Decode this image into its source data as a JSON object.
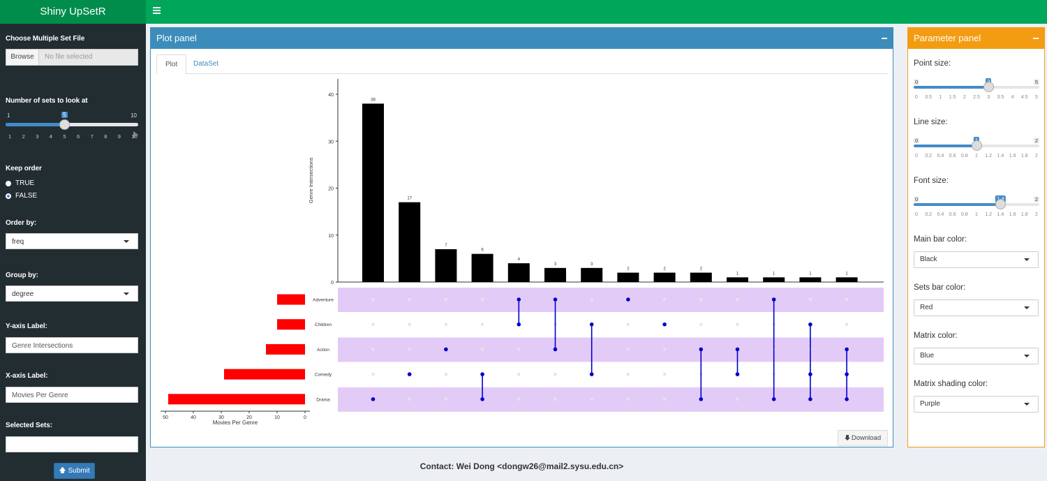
{
  "app": {
    "title": "Shiny UpSetR"
  },
  "sidebar": {
    "file_label": "Choose Multiple Set File",
    "browse_label": "Browse",
    "file_placeholder": "No file selected",
    "nsets_label": "Number of sets to look at",
    "nsets_min": "1",
    "nsets_max": "10",
    "nsets_value": "5",
    "nsets_ticks": [
      "1",
      "2",
      "3",
      "4",
      "5",
      "6",
      "7",
      "8",
      "9",
      "10"
    ],
    "keep_order_label": "Keep order",
    "keep_order_options": [
      "TRUE",
      "FALSE"
    ],
    "keep_order_selected": "FALSE",
    "order_by_label": "Order by:",
    "order_by_value": "freq",
    "group_by_label": "Group by:",
    "group_by_value": "degree",
    "y_label_label": "Y-axis Label:",
    "y_label_value": "Genre Intersections",
    "x_label_label": "X-axis Label:",
    "x_label_value": "Movies Per Genre",
    "selected_sets_label": "Selected Sets:",
    "selected_sets_value": "",
    "submit_label": "Submit"
  },
  "plot_panel": {
    "title": "Plot panel",
    "tabs": [
      "Plot",
      "DataSet"
    ],
    "active_tab": "Plot",
    "download_label": "Download"
  },
  "param_panel": {
    "title": "Parameter panel",
    "point_size": {
      "label": "Point size:",
      "min": "0",
      "max": "5",
      "value": 3,
      "value_label": "3",
      "ticks": [
        "0",
        "0.5",
        "1",
        "1.5",
        "2",
        "2.5",
        "3",
        "3.5",
        "4",
        "4.5",
        "5"
      ]
    },
    "line_size": {
      "label": "Line size:",
      "min": "0",
      "max": "2",
      "value": 1,
      "value_label": "1",
      "ticks": [
        "0",
        "0.2",
        "0.4",
        "0.6",
        "0.8",
        "1",
        "1.2",
        "1.4",
        "1.6",
        "1.8",
        "2"
      ]
    },
    "font_size": {
      "label": "Font size:",
      "min": "0",
      "max": "2",
      "value": 1.4,
      "value_label": "1.4",
      "ticks": [
        "0",
        "0.2",
        "0.4",
        "0.6",
        "0.8",
        "1",
        "1.2",
        "1.4",
        "1.6",
        "1.8",
        "2"
      ]
    },
    "main_bar_color": {
      "label": "Main bar color:",
      "value": "Black"
    },
    "sets_bar_color": {
      "label": "Sets bar color:",
      "value": "Red"
    },
    "matrix_color": {
      "label": "Matrix color:",
      "value": "Blue"
    },
    "shading_color": {
      "label": "Matrix shading color:",
      "value": "Purple"
    }
  },
  "footer": {
    "contact": "Contact: Wei Dong <dongw26@mail2.sysu.edu.cn>"
  },
  "colors": {
    "main_bar": "#000000",
    "sets_bar": "#ff0000",
    "matrix": "#0000cc",
    "shading": "#e3cbf7",
    "header": "#00a65a",
    "logo": "#008d4c",
    "plot_box": "#3c8dbc",
    "param_box": "#f39c12",
    "sidebar": "#222d32"
  },
  "chart_data": {
    "type": "bar",
    "ylabel": "Genre Intersections",
    "xlabel": "Movies Per Genre",
    "yticks": [
      "0",
      "10",
      "20",
      "30",
      "40"
    ],
    "ylim": [
      0,
      42
    ],
    "intersections": [
      {
        "value": 38,
        "label": "38",
        "sets": [
          "Drama"
        ]
      },
      {
        "value": 17,
        "label": "17",
        "sets": [
          "Comedy"
        ]
      },
      {
        "value": 7,
        "label": "7",
        "sets": [
          "Action"
        ]
      },
      {
        "value": 6,
        "label": "6",
        "sets": [
          "Comedy",
          "Drama"
        ]
      },
      {
        "value": 4,
        "label": "4",
        "sets": [
          "Adventure",
          "Children"
        ]
      },
      {
        "value": 3,
        "label": "3",
        "sets": [
          "Adventure",
          "Action"
        ]
      },
      {
        "value": 3,
        "label": "3",
        "sets": [
          "Children",
          "Comedy"
        ]
      },
      {
        "value": 2,
        "label": "2",
        "sets": [
          "Adventure"
        ]
      },
      {
        "value": 2,
        "label": "2",
        "sets": [
          "Children"
        ]
      },
      {
        "value": 2,
        "label": "2",
        "sets": [
          "Action",
          "Drama"
        ]
      },
      {
        "value": 1,
        "label": "1",
        "sets": [
          "Action",
          "Comedy"
        ]
      },
      {
        "value": 1,
        "label": "1",
        "sets": [
          "Adventure",
          "Drama"
        ]
      },
      {
        "value": 1,
        "label": "1",
        "sets": [
          "Children",
          "Comedy",
          "Drama"
        ]
      },
      {
        "value": 1,
        "label": "1",
        "sets": [
          "Action",
          "Comedy",
          "Drama"
        ]
      }
    ],
    "sets": [
      {
        "name": "Adventure",
        "size": 10
      },
      {
        "name": "Children",
        "size": 10
      },
      {
        "name": "Action",
        "size": 14
      },
      {
        "name": "Comedy",
        "size": 29
      },
      {
        "name": "Drama",
        "size": 49
      }
    ],
    "set_size_ticks": [
      "50",
      "40",
      "30",
      "20",
      "10",
      "0"
    ],
    "set_size_max": 50
  }
}
